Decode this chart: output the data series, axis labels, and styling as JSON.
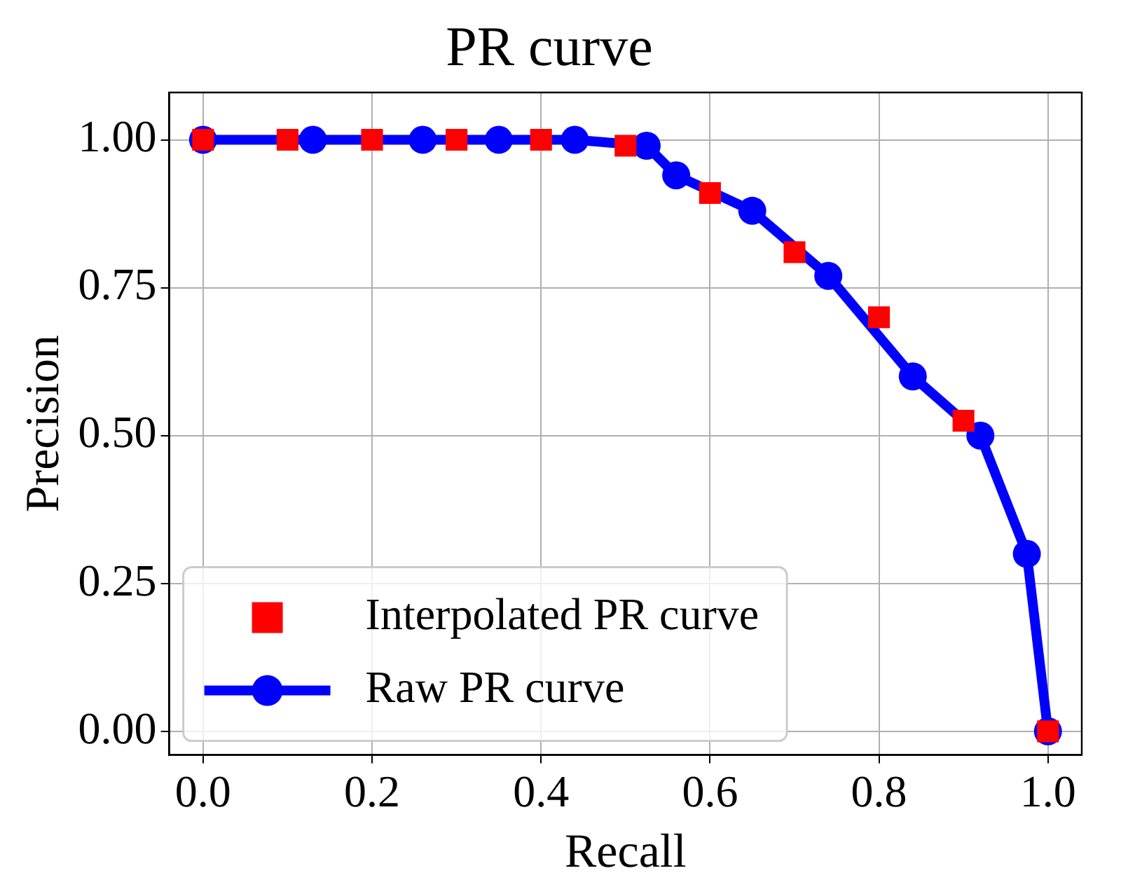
{
  "chart_data": {
    "type": "line",
    "title": "PR curve",
    "xlabel": "Recall",
    "ylabel": "Precision",
    "xlim": [
      -0.04,
      1.04
    ],
    "ylim": [
      -0.04,
      1.08
    ],
    "xticks": [
      {
        "value": 0,
        "label": "0.0"
      },
      {
        "value": 0.2,
        "label": "0.2"
      },
      {
        "value": 0.4,
        "label": "0.4"
      },
      {
        "value": 0.6,
        "label": "0.6"
      },
      {
        "value": 0.8,
        "label": "0.8"
      },
      {
        "value": 1,
        "label": "1.0"
      }
    ],
    "yticks": [
      {
        "value": 0,
        "label": "0.00"
      },
      {
        "value": 0.25,
        "label": "0.25"
      },
      {
        "value": 0.5,
        "label": "0.50"
      },
      {
        "value": 0.75,
        "label": "0.75"
      },
      {
        "value": 1,
        "label": "1.00"
      }
    ],
    "grid": true,
    "legend": "bottom left",
    "series": [
      {
        "name": "Interpolated PR curve",
        "type": "scatter",
        "marker": "square",
        "color": "#ff0000",
        "x": [
          0,
          0.1,
          0.2,
          0.3,
          0.4,
          0.5,
          0.6,
          0.7,
          0.8,
          0.9,
          1.0
        ],
        "values": [
          1,
          1,
          1,
          1,
          1,
          0.99,
          0.91,
          0.81,
          0.7,
          0.525,
          0
        ]
      },
      {
        "name": "Raw PR curve",
        "type": "line",
        "marker": "circle",
        "line_style": "solid",
        "color": "#0000ff",
        "x": [
          0,
          0.13,
          0.26,
          0.35,
          0.44,
          0.525,
          0.56,
          0.65,
          0.74,
          0.84,
          0.92,
          0.975,
          1.0
        ],
        "values": [
          1,
          1,
          1,
          1,
          1,
          0.99,
          0.94,
          0.88,
          0.77,
          0.6,
          0.5,
          0.3,
          0
        ]
      }
    ]
  }
}
